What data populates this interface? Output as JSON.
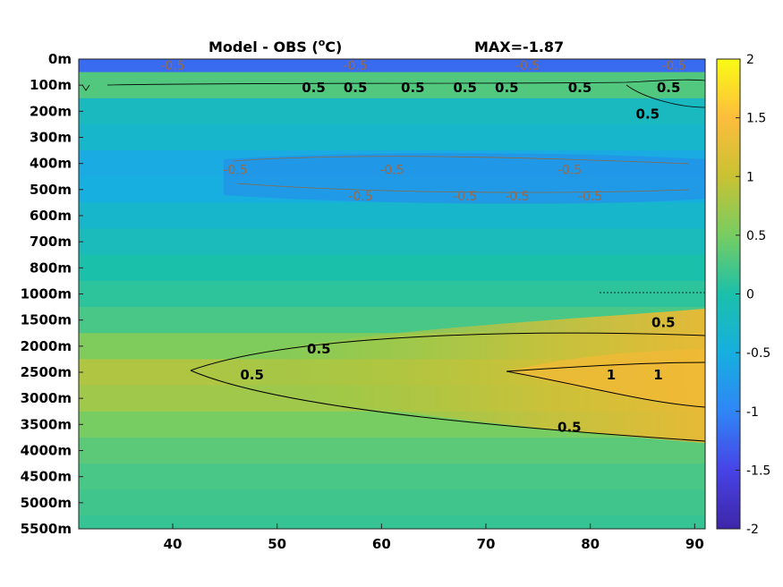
{
  "title_left": "Model - OBS (",
  "title_unit_sup": "o",
  "title_unit_end": "C)",
  "title_right": "MAX=-1.87",
  "chart_data": {
    "type": "heatmap",
    "title": "Model - OBS (oC)",
    "annotation": "MAX=-1.87",
    "xlim": [
      31,
      91
    ],
    "x_ticks": [
      "40",
      "50",
      "60",
      "70",
      "80",
      "90"
    ],
    "y_ticks": [
      "0m",
      "100m",
      "200m",
      "300m",
      "400m",
      "500m",
      "600m",
      "700m",
      "800m",
      "1000m",
      "1500m",
      "2000m",
      "2500m",
      "3000m",
      "3500m",
      "4000m",
      "4500m",
      "5000m",
      "5500m"
    ],
    "colorbar": {
      "range": [
        -2,
        2
      ],
      "ticks": [
        "2",
        "1.5",
        "1",
        "0.5",
        "0",
        "-0.5",
        "-1",
        "-1.5",
        "-2"
      ],
      "colormap": [
        "#3e26a8",
        "#4743e6",
        "#2f86f6",
        "#16afdf",
        "#1bc0aa",
        "#77cd61",
        "#c9c233",
        "#fdbd3c",
        "#f9fb15"
      ]
    },
    "depth_rows": [
      {
        "depth": "0m",
        "value": -1.2
      },
      {
        "depth": "100m",
        "value": 0.3
      },
      {
        "depth": "200m",
        "value": -0.2
      },
      {
        "depth": "300m",
        "value": -0.3
      },
      {
        "depth": "400m",
        "value": -0.55
      },
      {
        "depth": "500m",
        "value": -0.5
      },
      {
        "depth": "600m",
        "value": -0.3
      },
      {
        "depth": "700m",
        "value": -0.15
      },
      {
        "depth": "800m",
        "value": 0.0
      },
      {
        "depth": "1000m",
        "value": 0.1
      },
      {
        "depth": "1500m",
        "value": 0.25
      },
      {
        "depth": "2000m",
        "value": 0.55
      },
      {
        "depth": "2500m",
        "value": 0.85
      },
      {
        "depth": "3000m",
        "value": 0.75
      },
      {
        "depth": "3500m",
        "value": 0.5
      },
      {
        "depth": "4000m",
        "value": 0.35
      },
      {
        "depth": "4500m",
        "value": 0.25
      },
      {
        "depth": "5000m",
        "value": 0.2
      },
      {
        "depth": "5500m",
        "value": 0.15
      }
    ],
    "contour_labels": [
      {
        "text": "0.5",
        "x": 54,
        "depth": "2000m"
      },
      {
        "text": "0.5",
        "x": 47.6,
        "depth": "2500m"
      },
      {
        "text": "0.5",
        "x": 87,
        "depth": "1500m"
      },
      {
        "text": "0.5",
        "x": 78,
        "depth": "3500m"
      },
      {
        "text": "1",
        "x": 86.5,
        "depth": "2500m"
      },
      {
        "text": "1",
        "x": 82,
        "depth": "2500m"
      },
      {
        "text": "0.5",
        "x": 53.5,
        "depth": "100m"
      },
      {
        "text": "0.5",
        "x": 57.5,
        "depth": "100m"
      },
      {
        "text": "0.5",
        "x": 63,
        "depth": "100m"
      },
      {
        "text": "0.5",
        "x": 68,
        "depth": "100m"
      },
      {
        "text": "0.5",
        "x": 72,
        "depth": "100m"
      },
      {
        "text": "0.5",
        "x": 79,
        "depth": "100m"
      },
      {
        "text": "0.5",
        "x": 87.5,
        "depth": "100m"
      },
      {
        "text": "0.5",
        "x": 85.5,
        "depth": "200m"
      },
      {
        "text": "-0.5",
        "x": 40,
        "depth": "0m"
      },
      {
        "text": "-0.5",
        "x": 57.5,
        "depth": "0m"
      },
      {
        "text": "-0.5",
        "x": 74,
        "depth": "0m"
      },
      {
        "text": "-0.5",
        "x": 88,
        "depth": "0m"
      },
      {
        "text": "-0.5",
        "x": 61,
        "depth": "400m"
      },
      {
        "text": "-0.5",
        "x": 78,
        "depth": "400m"
      },
      {
        "text": "-0.5",
        "x": 46,
        "depth": "400m"
      },
      {
        "text": "-0.5",
        "x": 58,
        "depth": "500m"
      },
      {
        "text": "-0.5",
        "x": 68,
        "depth": "500m"
      },
      {
        "text": "-0.5",
        "x": 73,
        "depth": "500m"
      },
      {
        "text": "-0.5",
        "x": 80,
        "depth": "500m"
      }
    ]
  }
}
